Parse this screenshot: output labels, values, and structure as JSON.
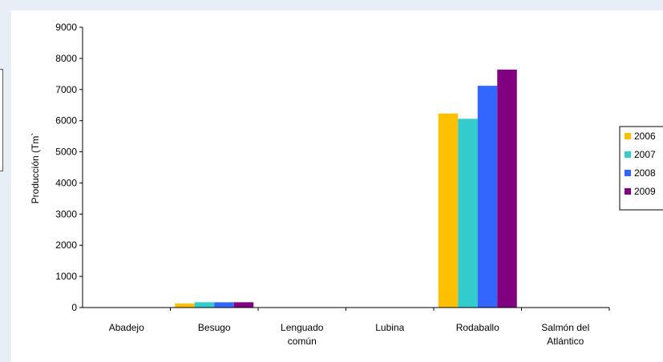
{
  "chart_data": {
    "type": "bar",
    "title": "",
    "xlabel": "",
    "ylabel": "Producción (Tm`",
    "ylim": [
      0,
      9000
    ],
    "yticks": [
      0,
      1000,
      2000,
      3000,
      4000,
      5000,
      6000,
      7000,
      8000,
      9000
    ],
    "grid": false,
    "legend_position": "right (clipped)",
    "categories": [
      [
        "Abadejo"
      ],
      [
        "Besugo"
      ],
      [
        "Lenguado",
        "común"
      ],
      [
        "Lubina"
      ],
      [
        "Rodaballo"
      ],
      [
        "Salmón del",
        "Atlántico"
      ]
    ],
    "series": [
      {
        "name": "2006",
        "color": "#ffc000",
        "values": [
          0,
          130,
          0,
          0,
          6230,
          0
        ]
      },
      {
        "name": "2007",
        "color": "#33cccc",
        "values": [
          0,
          170,
          0,
          0,
          6060,
          0
        ]
      },
      {
        "name": "2008",
        "color": "#3366ff",
        "values": [
          0,
          170,
          0,
          0,
          7120,
          0
        ]
      },
      {
        "name": "2009",
        "color": "#800080",
        "values": [
          0,
          170,
          0,
          0,
          7640,
          0
        ]
      }
    ]
  }
}
